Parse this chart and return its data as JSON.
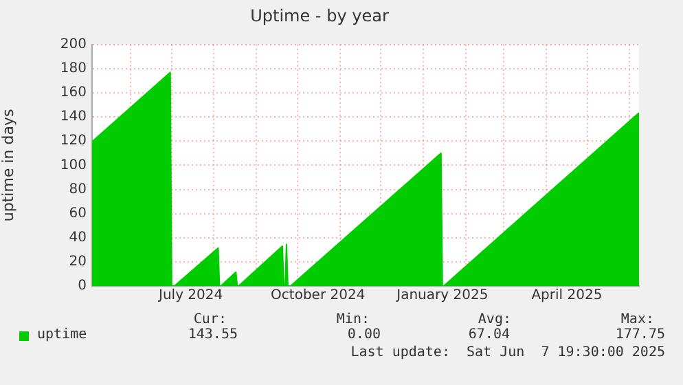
{
  "chart_data": {
    "type": "area",
    "title": "Uptime - by year",
    "ylabel": "uptime in days",
    "x": [
      "2024-05-03T19:30",
      "2024-06-30",
      "2024-07-01",
      "2024-07-03",
      "2024-08-04",
      "2024-08-05",
      "2024-08-06",
      "2024-08-17",
      "2024-08-18",
      "2024-08-19",
      "2024-09-20",
      "2024-09-21",
      "2024-09-22",
      "2024-09-23",
      "2024-09-24",
      "2024-09-26",
      "2025-01-14",
      "2025-01-15",
      "2025-01-16",
      "2025-06-07T19:30"
    ],
    "series": [
      {
        "name": "uptime",
        "color": "#00cc00",
        "values": [
          119.5,
          177,
          0,
          0,
          31.5,
          0,
          0,
          11.5,
          0,
          0,
          33,
          0,
          0,
          34.5,
          0,
          0,
          110,
          0,
          0,
          143.55
        ]
      }
    ],
    "xlim": [
      "2024-05-03T19:30",
      "2025-06-07T19:30"
    ],
    "xticks": [
      {
        "value": "2024-06-01",
        "label": null
      },
      {
        "value": "2024-07-01",
        "label": null
      },
      {
        "value": "2024-07-15",
        "label": "July 2024"
      },
      {
        "value": "2024-08-01",
        "label": null
      },
      {
        "value": "2024-09-01",
        "label": null
      },
      {
        "value": "2024-10-01",
        "label": null
      },
      {
        "value": "2024-10-16",
        "label": "October 2024"
      },
      {
        "value": "2024-11-01",
        "label": null
      },
      {
        "value": "2024-12-01",
        "label": null
      },
      {
        "value": "2025-01-01",
        "label": null
      },
      {
        "value": "2025-01-15",
        "label": "January 2025"
      },
      {
        "value": "2025-02-01",
        "label": null
      },
      {
        "value": "2025-03-01",
        "label": null
      },
      {
        "value": "2025-04-01",
        "label": null
      },
      {
        "value": "2025-04-16",
        "label": "April 2025"
      },
      {
        "value": "2025-05-01",
        "label": null
      },
      {
        "value": "2025-06-01",
        "label": null
      }
    ],
    "ylim": [
      0,
      200
    ],
    "yticks": [
      0,
      20,
      40,
      60,
      80,
      100,
      120,
      140,
      160,
      180,
      200
    ],
    "grid": true,
    "legend": "bottom left",
    "annotations": [
      "Cur:",
      "Min:",
      "Avg:",
      "Max:",
      "143.55",
      "0.00",
      "67.04",
      "177.75",
      "Last update:  Sat Jun  7 19:30:00 2025"
    ]
  }
}
